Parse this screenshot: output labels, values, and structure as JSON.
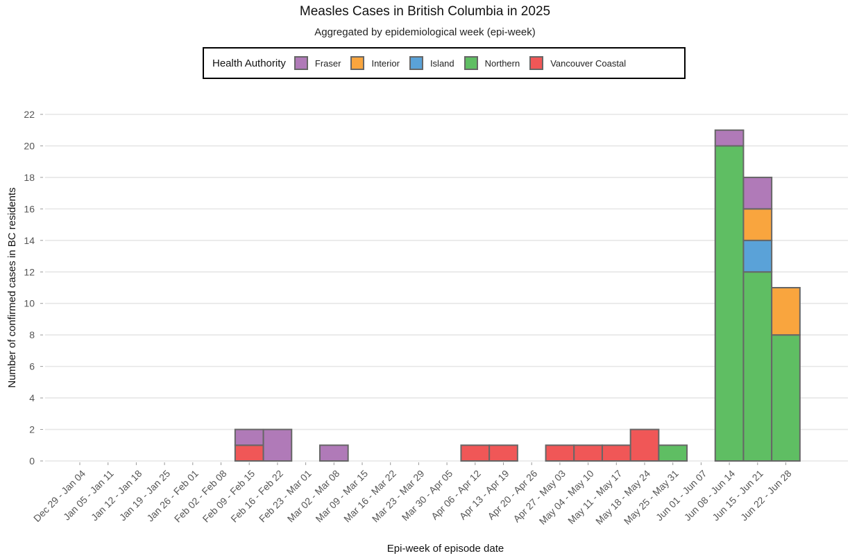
{
  "chart_data": {
    "type": "bar",
    "stacked": true,
    "title": "Measles Cases in British Columbia in 2025",
    "subtitle": "Aggregated by epidemiological week (epi-week)",
    "xlabel": "Epi-week of episode date",
    "ylabel": "Number of confirmed cases in BC residents",
    "ylim": [
      0,
      22
    ],
    "yticks": [
      0,
      2,
      4,
      6,
      8,
      10,
      12,
      14,
      16,
      18,
      20,
      22
    ],
    "grid": true,
    "legend": {
      "title": "Health Authority",
      "placement": "top"
    },
    "categories": [
      "Dec 29 - Jan 04",
      "Jan 05 - Jan 11",
      "Jan 12 - Jan 18",
      "Jan 19 - Jan 25",
      "Jan 26 - Feb 01",
      "Feb 02 - Feb 08",
      "Feb 09 - Feb 15",
      "Feb 16 - Feb 22",
      "Feb 23 - Mar 01",
      "Mar 02 - Mar 08",
      "Mar 09 - Mar 15",
      "Mar 16 - Mar 22",
      "Mar 23 - Mar 29",
      "Mar 30 - Apr 05",
      "Apr 06 - Apr 12",
      "Apr 13 - Apr 19",
      "Apr 20 - Apr 26",
      "Apr 27 - May 03",
      "May 04 - May 10",
      "May 11 - May 17",
      "May 18 - May 24",
      "May 25 - May 31",
      "Jun 01 - Jun 07",
      "Jun 08 - Jun 14",
      "Jun 15 - Jun 21",
      "Jun 22 - Jun 28"
    ],
    "series": [
      {
        "name": "Vancouver Coastal",
        "color": "#f05757",
        "values": [
          0,
          0,
          0,
          0,
          0,
          0,
          1,
          0,
          0,
          0,
          0,
          0,
          0,
          0,
          1,
          1,
          0,
          1,
          1,
          1,
          2,
          0,
          0,
          0,
          0,
          0
        ]
      },
      {
        "name": "Northern",
        "color": "#5fbe63",
        "values": [
          0,
          0,
          0,
          0,
          0,
          0,
          0,
          0,
          0,
          0,
          0,
          0,
          0,
          0,
          0,
          0,
          0,
          0,
          0,
          0,
          0,
          1,
          0,
          20,
          12,
          8
        ]
      },
      {
        "name": "Island",
        "color": "#5aa2d8",
        "values": [
          0,
          0,
          0,
          0,
          0,
          0,
          0,
          0,
          0,
          0,
          0,
          0,
          0,
          0,
          0,
          0,
          0,
          0,
          0,
          0,
          0,
          0,
          0,
          0,
          2,
          0
        ]
      },
      {
        "name": "Interior",
        "color": "#f9a53e",
        "values": [
          0,
          0,
          0,
          0,
          0,
          0,
          0,
          0,
          0,
          0,
          0,
          0,
          0,
          0,
          0,
          0,
          0,
          0,
          0,
          0,
          0,
          0,
          0,
          0,
          2,
          3
        ]
      },
      {
        "name": "Fraser",
        "color": "#b07ab8",
        "values": [
          0,
          0,
          0,
          0,
          0,
          0,
          1,
          2,
          0,
          1,
          0,
          0,
          0,
          0,
          0,
          0,
          0,
          0,
          0,
          0,
          0,
          0,
          0,
          1,
          2,
          0
        ]
      }
    ],
    "legend_order": [
      "Fraser",
      "Interior",
      "Island",
      "Northern",
      "Vancouver Coastal"
    ]
  }
}
